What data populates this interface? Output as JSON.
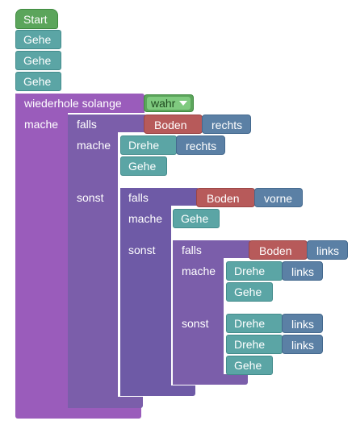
{
  "workspace": {
    "start": "Start",
    "gehe": "Gehe",
    "drehe": "Drehe",
    "loop": {
      "label": "wiederhole solange",
      "condition": "wahr",
      "do": "mache"
    },
    "ifs": {
      "falls": "falls",
      "mache": "mache",
      "sonst": "sonst",
      "boden": "Boden"
    },
    "directions": {
      "rechts": "rechts",
      "vorne": "vorne",
      "links": "links"
    }
  },
  "colors": {
    "motion": "#5ba5a5",
    "event": "#5ba55b",
    "loop": "#9a5cbb",
    "logic": "#7b5eaa",
    "sensor": "#b75a5a",
    "direction": "#5b80a5"
  }
}
